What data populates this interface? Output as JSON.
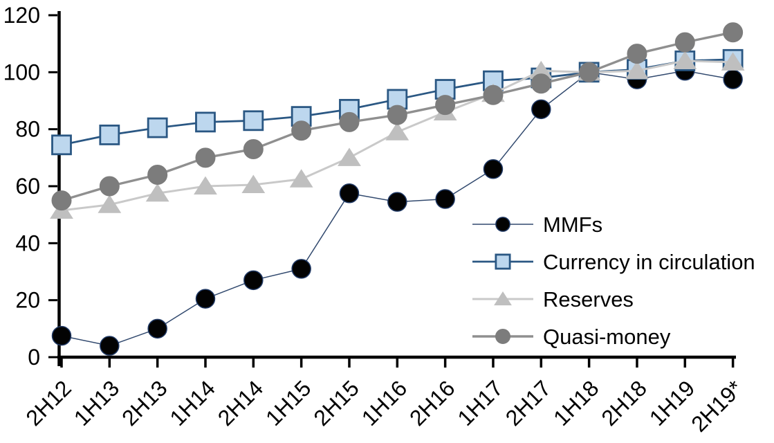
{
  "chart_data": {
    "type": "line",
    "title": "",
    "xlabel": "",
    "ylabel": "",
    "categories": [
      "2H12",
      "1H13",
      "2H13",
      "1H14",
      "2H14",
      "1H15",
      "2H15",
      "1H16",
      "2H16",
      "1H17",
      "2H17",
      "1H18",
      "2H18",
      "1H19",
      "2H19*"
    ],
    "y_ticks": [
      0,
      20,
      40,
      60,
      80,
      100,
      120
    ],
    "ylim": [
      0,
      120
    ],
    "grid": false,
    "legend_position": "inside-right-middle",
    "axis_color": "#000000",
    "background_color": "#ffffff",
    "series": [
      {
        "name": "MMFs",
        "marker": "circle",
        "line_color": "#31496e",
        "line_width": 1.5,
        "marker_fill": "#030303",
        "marker_stroke": "#1f3864",
        "marker_stroke_width": 1.5,
        "marker_size": 27,
        "values": [
          7.5,
          4,
          10,
          20.5,
          27,
          31,
          57.5,
          54.5,
          55.5,
          66,
          87,
          100,
          97.5,
          100.5,
          97.5
        ]
      },
      {
        "name": "Currency in circulation",
        "marker": "square",
        "line_color": "#2a5783",
        "line_width": 2.8,
        "marker_fill": "#bdd7ee",
        "marker_stroke": "#2a5783",
        "marker_stroke_width": 2.8,
        "marker_size": 27,
        "values": [
          74.5,
          78,
          80.5,
          82.5,
          83,
          84.5,
          87,
          90.5,
          94,
          97,
          98,
          100,
          101,
          104,
          104.5
        ]
      },
      {
        "name": "Reserves",
        "marker": "triangle",
        "line_color": "#c9c9c9",
        "line_width": 3,
        "marker_fill": "#bfbfbf",
        "marker_stroke": "#bfbfbf",
        "marker_stroke_width": 1,
        "marker_size": 28,
        "values": [
          51.5,
          53.5,
          57.5,
          60,
          60.5,
          62.5,
          70,
          79,
          86,
          92.5,
          100.5,
          100,
          100.5,
          104,
          103.5
        ]
      },
      {
        "name": "Quasi-money",
        "marker": "circle",
        "line_color": "#8f8f8f",
        "line_width": 3.4,
        "marker_fill": "#7c7c7c",
        "marker_stroke": "#7c7c7c",
        "marker_stroke_width": 1,
        "marker_size": 28,
        "values": [
          55,
          60,
          64,
          70,
          73,
          79.5,
          82.5,
          85,
          88.5,
          92,
          96,
          100,
          106.5,
          110.5,
          114
        ]
      }
    ]
  }
}
